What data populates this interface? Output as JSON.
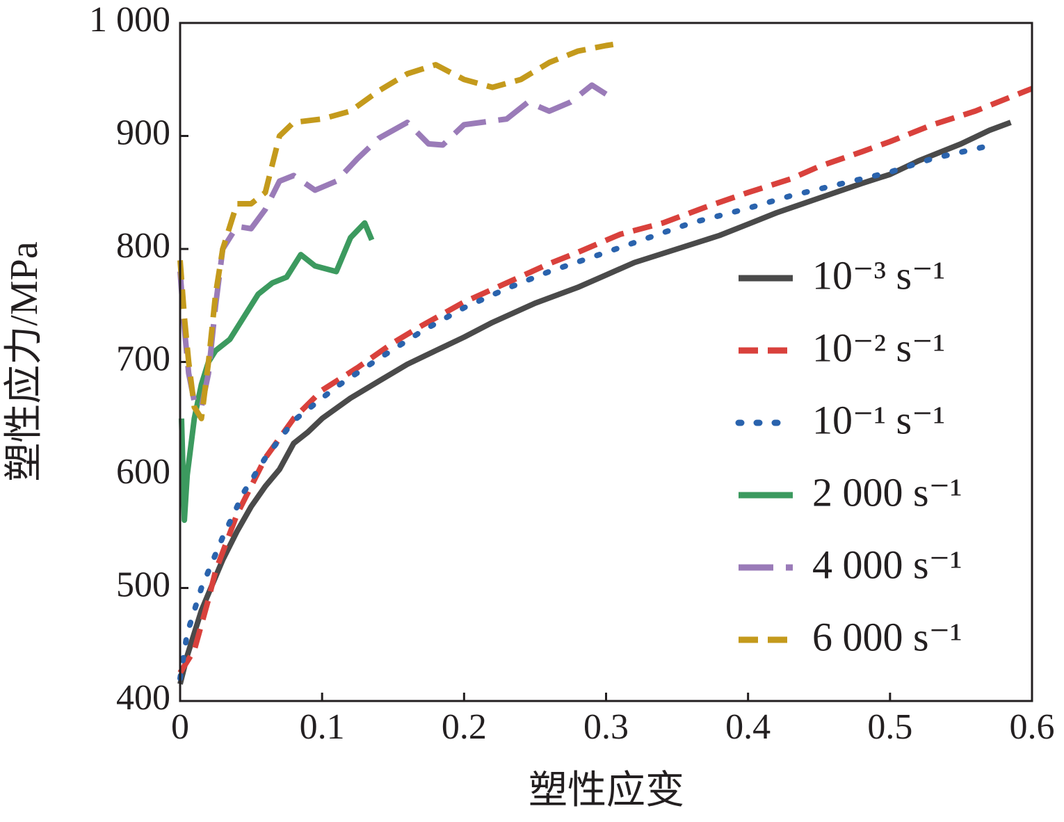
{
  "chart_data": {
    "type": "line",
    "xlabel": "塑性应变",
    "ylabel": "塑性应力/MPa",
    "xlim": [
      0,
      0.6
    ],
    "ylim": [
      400,
      1000
    ],
    "xticks": [
      0,
      0.1,
      0.2,
      0.3,
      0.4,
      0.5,
      0.6
    ],
    "yticks": [
      400,
      500,
      600,
      700,
      800,
      900,
      {
        "value": 1000,
        "label": "1 000"
      }
    ],
    "grid": false,
    "legend": "right",
    "series": [
      {
        "name": "10⁻³ s⁻¹",
        "color": "#4a4a4a",
        "style": "solid",
        "x": [
          0,
          0.005,
          0.01,
          0.015,
          0.02,
          0.03,
          0.04,
          0.05,
          0.06,
          0.07,
          0.08,
          0.09,
          0.1,
          0.12,
          0.14,
          0.16,
          0.18,
          0.2,
          0.22,
          0.25,
          0.28,
          0.3,
          0.32,
          0.35,
          0.38,
          0.4,
          0.42,
          0.45,
          0.48,
          0.5,
          0.52,
          0.55,
          0.57,
          0.585
        ],
        "values": [
          415,
          440,
          460,
          480,
          495,
          525,
          550,
          572,
          590,
          605,
          628,
          638,
          650,
          668,
          683,
          698,
          710,
          722,
          735,
          752,
          766,
          777,
          788,
          800,
          812,
          822,
          832,
          845,
          858,
          866,
          878,
          893,
          905,
          912
        ]
      },
      {
        "name": "10⁻² s⁻¹",
        "color": "#d9413c",
        "style": "dashed",
        "x": [
          0,
          0.01,
          0.02,
          0.025,
          0.04,
          0.05,
          0.06,
          0.08,
          0.1,
          0.125,
          0.15,
          0.17,
          0.2,
          0.23,
          0.26,
          0.28,
          0.31,
          0.34,
          0.37,
          0.4,
          0.43,
          0.45,
          0.48,
          0.5,
          0.53,
          0.56,
          0.6
        ],
        "values": [
          425,
          445,
          490,
          515,
          565,
          590,
          615,
          650,
          675,
          695,
          717,
          732,
          753,
          770,
          787,
          797,
          813,
          823,
          837,
          850,
          862,
          873,
          886,
          895,
          910,
          922,
          942
        ]
      },
      {
        "name": "10⁻¹ s⁻¹",
        "color": "#2a63ad",
        "style": "dotted",
        "x": [
          0,
          0.005,
          0.015,
          0.03,
          0.045,
          0.06,
          0.08,
          0.11,
          0.14,
          0.17,
          0.2,
          0.23,
          0.26,
          0.3,
          0.33,
          0.36,
          0.4,
          0.43,
          0.46,
          0.5,
          0.53,
          0.565
        ],
        "values": [
          420,
          460,
          500,
          545,
          585,
          615,
          648,
          678,
          703,
          727,
          748,
          765,
          780,
          797,
          810,
          823,
          836,
          847,
          856,
          868,
          880,
          890
        ]
      },
      {
        "name": "2 000 s⁻¹",
        "color": "#3c9a5f",
        "style": "solid",
        "x": [
          0.001,
          0.003,
          0.005,
          0.007,
          0.01,
          0.015,
          0.02,
          0.025,
          0.035,
          0.045,
          0.055,
          0.065,
          0.075,
          0.085,
          0.095,
          0.11,
          0.12,
          0.13,
          0.135
        ],
        "values": [
          650,
          560,
          600,
          620,
          650,
          680,
          700,
          710,
          720,
          740,
          760,
          770,
          775,
          795,
          785,
          780,
          810,
          823,
          808
        ]
      },
      {
        "name": "4 000 s⁻¹",
        "color": "#9a7bb8",
        "style": "longdash",
        "x": [
          0,
          0.003,
          0.006,
          0.01,
          0.015,
          0.02,
          0.025,
          0.03,
          0.04,
          0.05,
          0.06,
          0.07,
          0.08,
          0.095,
          0.11,
          0.125,
          0.14,
          0.16,
          0.175,
          0.185,
          0.2,
          0.23,
          0.245,
          0.26,
          0.275,
          0.29,
          0.3
        ],
        "values": [
          780,
          730,
          690,
          665,
          660,
          690,
          750,
          800,
          820,
          818,
          835,
          860,
          865,
          852,
          860,
          880,
          898,
          912,
          893,
          892,
          910,
          915,
          930,
          922,
          930,
          945,
          937
        ]
      },
      {
        "name": "6 000 s⁻¹",
        "color": "#c49a1c",
        "style": "dashed",
        "x": [
          0,
          0.003,
          0.006,
          0.01,
          0.015,
          0.02,
          0.025,
          0.03,
          0.04,
          0.05,
          0.06,
          0.07,
          0.08,
          0.1,
          0.12,
          0.14,
          0.16,
          0.18,
          0.2,
          0.22,
          0.24,
          0.26,
          0.28,
          0.3,
          0.305
        ],
        "values": [
          790,
          740,
          700,
          660,
          650,
          700,
          760,
          800,
          840,
          840,
          850,
          900,
          912,
          915,
          922,
          940,
          955,
          963,
          950,
          943,
          950,
          965,
          975,
          980,
          981
        ]
      }
    ]
  }
}
